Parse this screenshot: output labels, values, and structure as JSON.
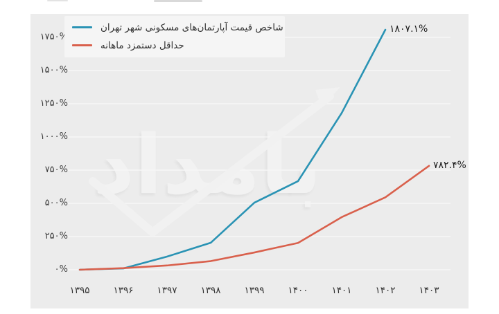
{
  "page": {
    "background": "#ffffff"
  },
  "chart_card": {
    "background": "#ececec"
  },
  "watermark": {
    "text": "بامداد"
  },
  "legend": {
    "position": "top-left",
    "items": [
      {
        "label": "شاخص قیمت آپارتمان‌های مسکونی شهر تهران",
        "color": "#2a93b4"
      },
      {
        "label": "حداقل دستمزد ماهانه",
        "color": "#d9604c"
      }
    ]
  },
  "chart_data": {
    "type": "line",
    "title": "",
    "xlabel": "",
    "ylabel": "",
    "categories": [
      "۱۳۹۵",
      "۱۳۹۶",
      "۱۳۹۷",
      "۱۳۹۸",
      "۱۳۹۹",
      "۱۴۰۰",
      "۱۴۰۱",
      "۱۴۰۲",
      "۱۴۰۳"
    ],
    "ylim": [
      0,
      1750
    ],
    "ytick_step": 250,
    "ytick_labels": [
      "۰%",
      "۲۵۰%",
      "۵۰۰%",
      "۷۵۰%",
      "۱۰۰۰%",
      "۱۲۵۰%",
      "۱۵۰۰%",
      "۱۷۵۰%"
    ],
    "grid": true,
    "legend_position": "top-left-inside",
    "series": [
      {
        "name": "شاخص قیمت آپارتمان‌های مسکونی شهر تهران",
        "color": "#2a93b4",
        "values": [
          0,
          10,
          99,
          203,
          505,
          667,
          1180,
          1807.1
        ],
        "end_label": "۱۸۰۷.۱%",
        "last_value_pct": 1807.1
      },
      {
        "name": "حداقل دستمزد ماهانه",
        "color": "#d9604c",
        "values": [
          0,
          12,
          32,
          65,
          130,
          202,
          396,
          545,
          782.4
        ],
        "end_label": "۷۸۲.۴%",
        "last_value_pct": 782.4
      }
    ]
  }
}
